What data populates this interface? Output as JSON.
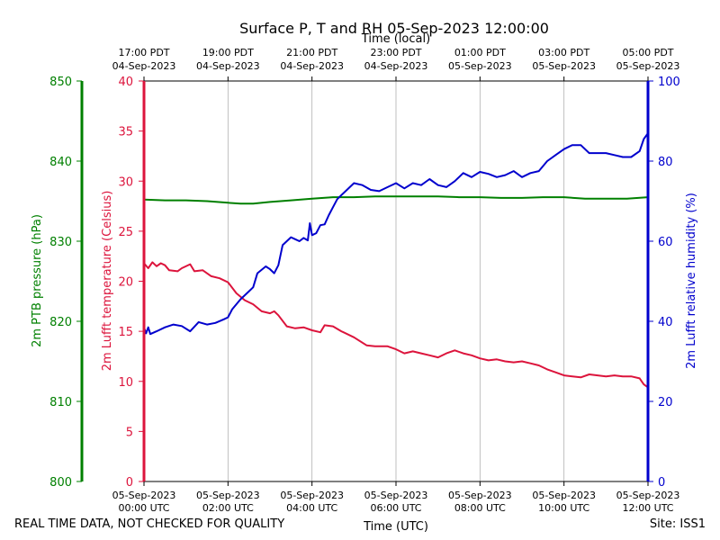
{
  "chart_data": {
    "type": "line",
    "title": "Surface P, T and RH 05-Sep-2023 12:00:00",
    "top_axis_label": "Time (local)",
    "xlabel": "Time (UTC)",
    "x_ticks_utc": [
      {
        "hour": 0,
        "date": "05-Sep-2023",
        "time": "00:00 UTC"
      },
      {
        "hour": 2,
        "date": "05-Sep-2023",
        "time": "02:00 UTC"
      },
      {
        "hour": 4,
        "date": "05-Sep-2023",
        "time": "04:00 UTC"
      },
      {
        "hour": 6,
        "date": "05-Sep-2023",
        "time": "06:00 UTC"
      },
      {
        "hour": 8,
        "date": "05-Sep-2023",
        "time": "08:00 UTC"
      },
      {
        "hour": 10,
        "date": "05-Sep-2023",
        "time": "10:00 UTC"
      },
      {
        "hour": 12,
        "date": "05-Sep-2023",
        "time": "12:00 UTC"
      }
    ],
    "x_ticks_local": [
      {
        "hour": 0,
        "time": "17:00 PDT",
        "date": "04-Sep-2023"
      },
      {
        "hour": 2,
        "time": "19:00 PDT",
        "date": "04-Sep-2023"
      },
      {
        "hour": 4,
        "time": "21:00 PDT",
        "date": "04-Sep-2023"
      },
      {
        "hour": 6,
        "time": "23:00 PDT",
        "date": "04-Sep-2023"
      },
      {
        "hour": 8,
        "time": "01:00 PDT",
        "date": "05-Sep-2023"
      },
      {
        "hour": 10,
        "time": "03:00 PDT",
        "date": "05-Sep-2023"
      },
      {
        "hour": 12,
        "time": "05:00 PDT",
        "date": "05-Sep-2023"
      }
    ],
    "xlim": [
      0,
      12
    ],
    "grid": "vertical",
    "axes": {
      "pressure": {
        "label": "2m PTB pressure (hPa)",
        "color": "#008000",
        "ylim": [
          800,
          850
        ],
        "ticks": [
          800,
          810,
          820,
          830,
          840,
          850
        ]
      },
      "temperature": {
        "label": "2m Lufft temperature (Celsius)",
        "color": "#dc143c",
        "ylim": [
          0,
          40
        ],
        "ticks": [
          0,
          5,
          10,
          15,
          20,
          25,
          30,
          35,
          40
        ]
      },
      "humidity": {
        "label": "2m Lufft relative humidity (%)",
        "color": "#0000cd",
        "ylim": [
          0,
          100
        ],
        "ticks": [
          0,
          20,
          40,
          60,
          80,
          100
        ]
      }
    },
    "series": [
      {
        "name": "2m PTB pressure (hPa)",
        "axis": "pressure",
        "color": "#008000",
        "points": [
          [
            0,
            835.2
          ],
          [
            0.5,
            835.1
          ],
          [
            1,
            835.1
          ],
          [
            1.5,
            835.0
          ],
          [
            2,
            834.8
          ],
          [
            2.3,
            834.7
          ],
          [
            2.6,
            834.7
          ],
          [
            3,
            834.9
          ],
          [
            3.5,
            835.1
          ],
          [
            4,
            835.3
          ],
          [
            4.5,
            835.5
          ],
          [
            5,
            835.5
          ],
          [
            5.5,
            835.6
          ],
          [
            6,
            835.6
          ],
          [
            6.5,
            835.6
          ],
          [
            7,
            835.6
          ],
          [
            7.5,
            835.5
          ],
          [
            8,
            835.5
          ],
          [
            8.5,
            835.4
          ],
          [
            9,
            835.4
          ],
          [
            9.5,
            835.5
          ],
          [
            10,
            835.5
          ],
          [
            10.5,
            835.3
          ],
          [
            11,
            835.3
          ],
          [
            11.5,
            835.3
          ],
          [
            12,
            835.5
          ]
        ]
      },
      {
        "name": "2m Lufft temperature (Celsius)",
        "axis": "temperature",
        "color": "#dc143c",
        "points": [
          [
            0,
            21.8
          ],
          [
            0.1,
            21.3
          ],
          [
            0.2,
            21.9
          ],
          [
            0.3,
            21.5
          ],
          [
            0.4,
            21.8
          ],
          [
            0.5,
            21.6
          ],
          [
            0.6,
            21.1
          ],
          [
            0.8,
            21.0
          ],
          [
            0.9,
            21.3
          ],
          [
            1.1,
            21.7
          ],
          [
            1.2,
            21.0
          ],
          [
            1.4,
            21.1
          ],
          [
            1.6,
            20.5
          ],
          [
            1.8,
            20.3
          ],
          [
            2.0,
            19.9
          ],
          [
            2.2,
            18.8
          ],
          [
            2.4,
            18.1
          ],
          [
            2.6,
            17.7
          ],
          [
            2.8,
            17.0
          ],
          [
            3.0,
            16.8
          ],
          [
            3.1,
            17.0
          ],
          [
            3.2,
            16.6
          ],
          [
            3.4,
            15.5
          ],
          [
            3.6,
            15.3
          ],
          [
            3.8,
            15.4
          ],
          [
            4.0,
            15.1
          ],
          [
            4.2,
            14.9
          ],
          [
            4.3,
            15.6
          ],
          [
            4.5,
            15.5
          ],
          [
            4.7,
            15.0
          ],
          [
            5.0,
            14.4
          ],
          [
            5.3,
            13.6
          ],
          [
            5.5,
            13.5
          ],
          [
            5.8,
            13.5
          ],
          [
            6.0,
            13.2
          ],
          [
            6.2,
            12.8
          ],
          [
            6.4,
            13.0
          ],
          [
            6.6,
            12.8
          ],
          [
            6.8,
            12.6
          ],
          [
            7.0,
            12.4
          ],
          [
            7.2,
            12.8
          ],
          [
            7.4,
            13.1
          ],
          [
            7.6,
            12.8
          ],
          [
            7.8,
            12.6
          ],
          [
            8.0,
            12.3
          ],
          [
            8.2,
            12.1
          ],
          [
            8.4,
            12.2
          ],
          [
            8.6,
            12.0
          ],
          [
            8.8,
            11.9
          ],
          [
            9.0,
            12.0
          ],
          [
            9.2,
            11.8
          ],
          [
            9.4,
            11.6
          ],
          [
            9.6,
            11.2
          ],
          [
            9.8,
            10.9
          ],
          [
            10.0,
            10.6
          ],
          [
            10.2,
            10.5
          ],
          [
            10.4,
            10.4
          ],
          [
            10.6,
            10.7
          ],
          [
            10.8,
            10.6
          ],
          [
            11.0,
            10.5
          ],
          [
            11.2,
            10.6
          ],
          [
            11.4,
            10.5
          ],
          [
            11.6,
            10.5
          ],
          [
            11.8,
            10.3
          ],
          [
            11.9,
            9.7
          ],
          [
            12.0,
            9.4
          ]
        ]
      },
      {
        "name": "2m Lufft relative humidity (%)",
        "axis": "humidity",
        "color": "#0000cd",
        "points": [
          [
            0,
            38.5
          ],
          [
            0.05,
            37.0
          ],
          [
            0.1,
            38.5
          ],
          [
            0.15,
            36.8
          ],
          [
            0.3,
            37.5
          ],
          [
            0.5,
            38.5
          ],
          [
            0.7,
            39.2
          ],
          [
            0.9,
            38.8
          ],
          [
            1.1,
            37.5
          ],
          [
            1.3,
            39.8
          ],
          [
            1.5,
            39.2
          ],
          [
            1.7,
            39.6
          ],
          [
            1.9,
            40.5
          ],
          [
            2.0,
            41.0
          ],
          [
            2.1,
            43.0
          ],
          [
            2.3,
            45.5
          ],
          [
            2.5,
            47.5
          ],
          [
            2.6,
            48.5
          ],
          [
            2.7,
            52.0
          ],
          [
            2.9,
            53.7
          ],
          [
            3.0,
            53.0
          ],
          [
            3.1,
            52.0
          ],
          [
            3.2,
            54.0
          ],
          [
            3.3,
            59.0
          ],
          [
            3.5,
            61.0
          ],
          [
            3.6,
            60.5
          ],
          [
            3.7,
            60.0
          ],
          [
            3.8,
            60.8
          ],
          [
            3.9,
            60.2
          ],
          [
            3.95,
            64.5
          ],
          [
            4.0,
            61.5
          ],
          [
            4.1,
            62.0
          ],
          [
            4.2,
            64.0
          ],
          [
            4.3,
            64.2
          ],
          [
            4.4,
            66.5
          ],
          [
            4.5,
            68.5
          ],
          [
            4.6,
            70.5
          ],
          [
            4.7,
            71.5
          ],
          [
            4.8,
            72.5
          ],
          [
            4.9,
            73.5
          ],
          [
            5.0,
            74.5
          ],
          [
            5.2,
            74.0
          ],
          [
            5.4,
            72.8
          ],
          [
            5.6,
            72.5
          ],
          [
            5.8,
            73.5
          ],
          [
            6.0,
            74.5
          ],
          [
            6.2,
            73.2
          ],
          [
            6.4,
            74.5
          ],
          [
            6.6,
            74.0
          ],
          [
            6.8,
            75.5
          ],
          [
            7.0,
            74.0
          ],
          [
            7.2,
            73.5
          ],
          [
            7.4,
            75.0
          ],
          [
            7.6,
            77.0
          ],
          [
            7.8,
            76.0
          ],
          [
            8.0,
            77.3
          ],
          [
            8.2,
            76.8
          ],
          [
            8.4,
            76.0
          ],
          [
            8.6,
            76.5
          ],
          [
            8.8,
            77.5
          ],
          [
            9.0,
            76.0
          ],
          [
            9.2,
            77.0
          ],
          [
            9.4,
            77.5
          ],
          [
            9.6,
            80.0
          ],
          [
            9.8,
            81.5
          ],
          [
            10.0,
            83.0
          ],
          [
            10.2,
            84.0
          ],
          [
            10.4,
            84.0
          ],
          [
            10.6,
            82.0
          ],
          [
            10.8,
            82.0
          ],
          [
            11.0,
            82.0
          ],
          [
            11.2,
            81.5
          ],
          [
            11.4,
            81.0
          ],
          [
            11.6,
            81.0
          ],
          [
            11.8,
            82.5
          ],
          [
            11.9,
            85.5
          ],
          [
            12.0,
            87.0
          ]
        ]
      }
    ]
  },
  "footer": {
    "disclaimer": "REAL TIME DATA, NOT CHECKED FOR QUALITY",
    "site": "Site: ISS1"
  }
}
